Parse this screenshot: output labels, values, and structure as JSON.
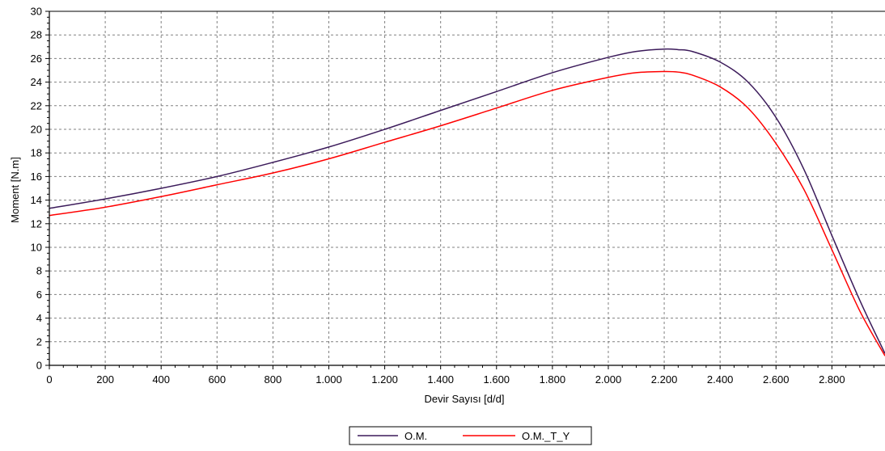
{
  "chart_data": {
    "type": "line",
    "title": "",
    "xlabel": "Devir Sayısı [d/d]",
    "ylabel": "Moment [N.m]",
    "xlim": [
      0,
      2990
    ],
    "ylim": [
      0,
      30
    ],
    "xticks": [
      0,
      200,
      400,
      600,
      800,
      1000,
      1200,
      1400,
      1600,
      1800,
      2000,
      2200,
      2400,
      2600,
      2800
    ],
    "xtick_labels": [
      "0",
      "200",
      "400",
      "600",
      "800",
      "1.000",
      "1.200",
      "1.400",
      "1.600",
      "1.800",
      "2.000",
      "2.200",
      "2.400",
      "2.600",
      "2.800"
    ],
    "yticks": [
      0,
      2,
      4,
      6,
      8,
      10,
      12,
      14,
      16,
      18,
      20,
      22,
      24,
      26,
      28,
      30
    ],
    "grid": true,
    "legend_position": "bottom-center",
    "series": [
      {
        "name": "O.M.",
        "color": "#3b1a5a",
        "x": [
          0,
          200,
          400,
          600,
          800,
          1000,
          1200,
          1400,
          1600,
          1800,
          2000,
          2100,
          2200,
          2250,
          2300,
          2400,
          2500,
          2600,
          2700,
          2800,
          2900,
          2990
        ],
        "y": [
          13.3,
          14.1,
          15.0,
          16.0,
          17.2,
          18.5,
          20.0,
          21.6,
          23.2,
          24.8,
          26.1,
          26.6,
          26.8,
          26.75,
          26.6,
          25.7,
          24.0,
          21.0,
          16.6,
          11.0,
          5.5,
          1.0
        ]
      },
      {
        "name": "O.M._T_Y",
        "color": "#ff0000",
        "x": [
          0,
          200,
          400,
          600,
          800,
          1000,
          1200,
          1400,
          1600,
          1800,
          2000,
          2100,
          2200,
          2250,
          2300,
          2400,
          2500,
          2600,
          2700,
          2800,
          2900,
          2990
        ],
        "y": [
          12.7,
          13.4,
          14.3,
          15.3,
          16.3,
          17.5,
          18.9,
          20.3,
          21.8,
          23.3,
          24.4,
          24.8,
          24.9,
          24.85,
          24.6,
          23.6,
          21.8,
          18.8,
          14.9,
          9.8,
          4.6,
          0.8
        ]
      }
    ]
  }
}
